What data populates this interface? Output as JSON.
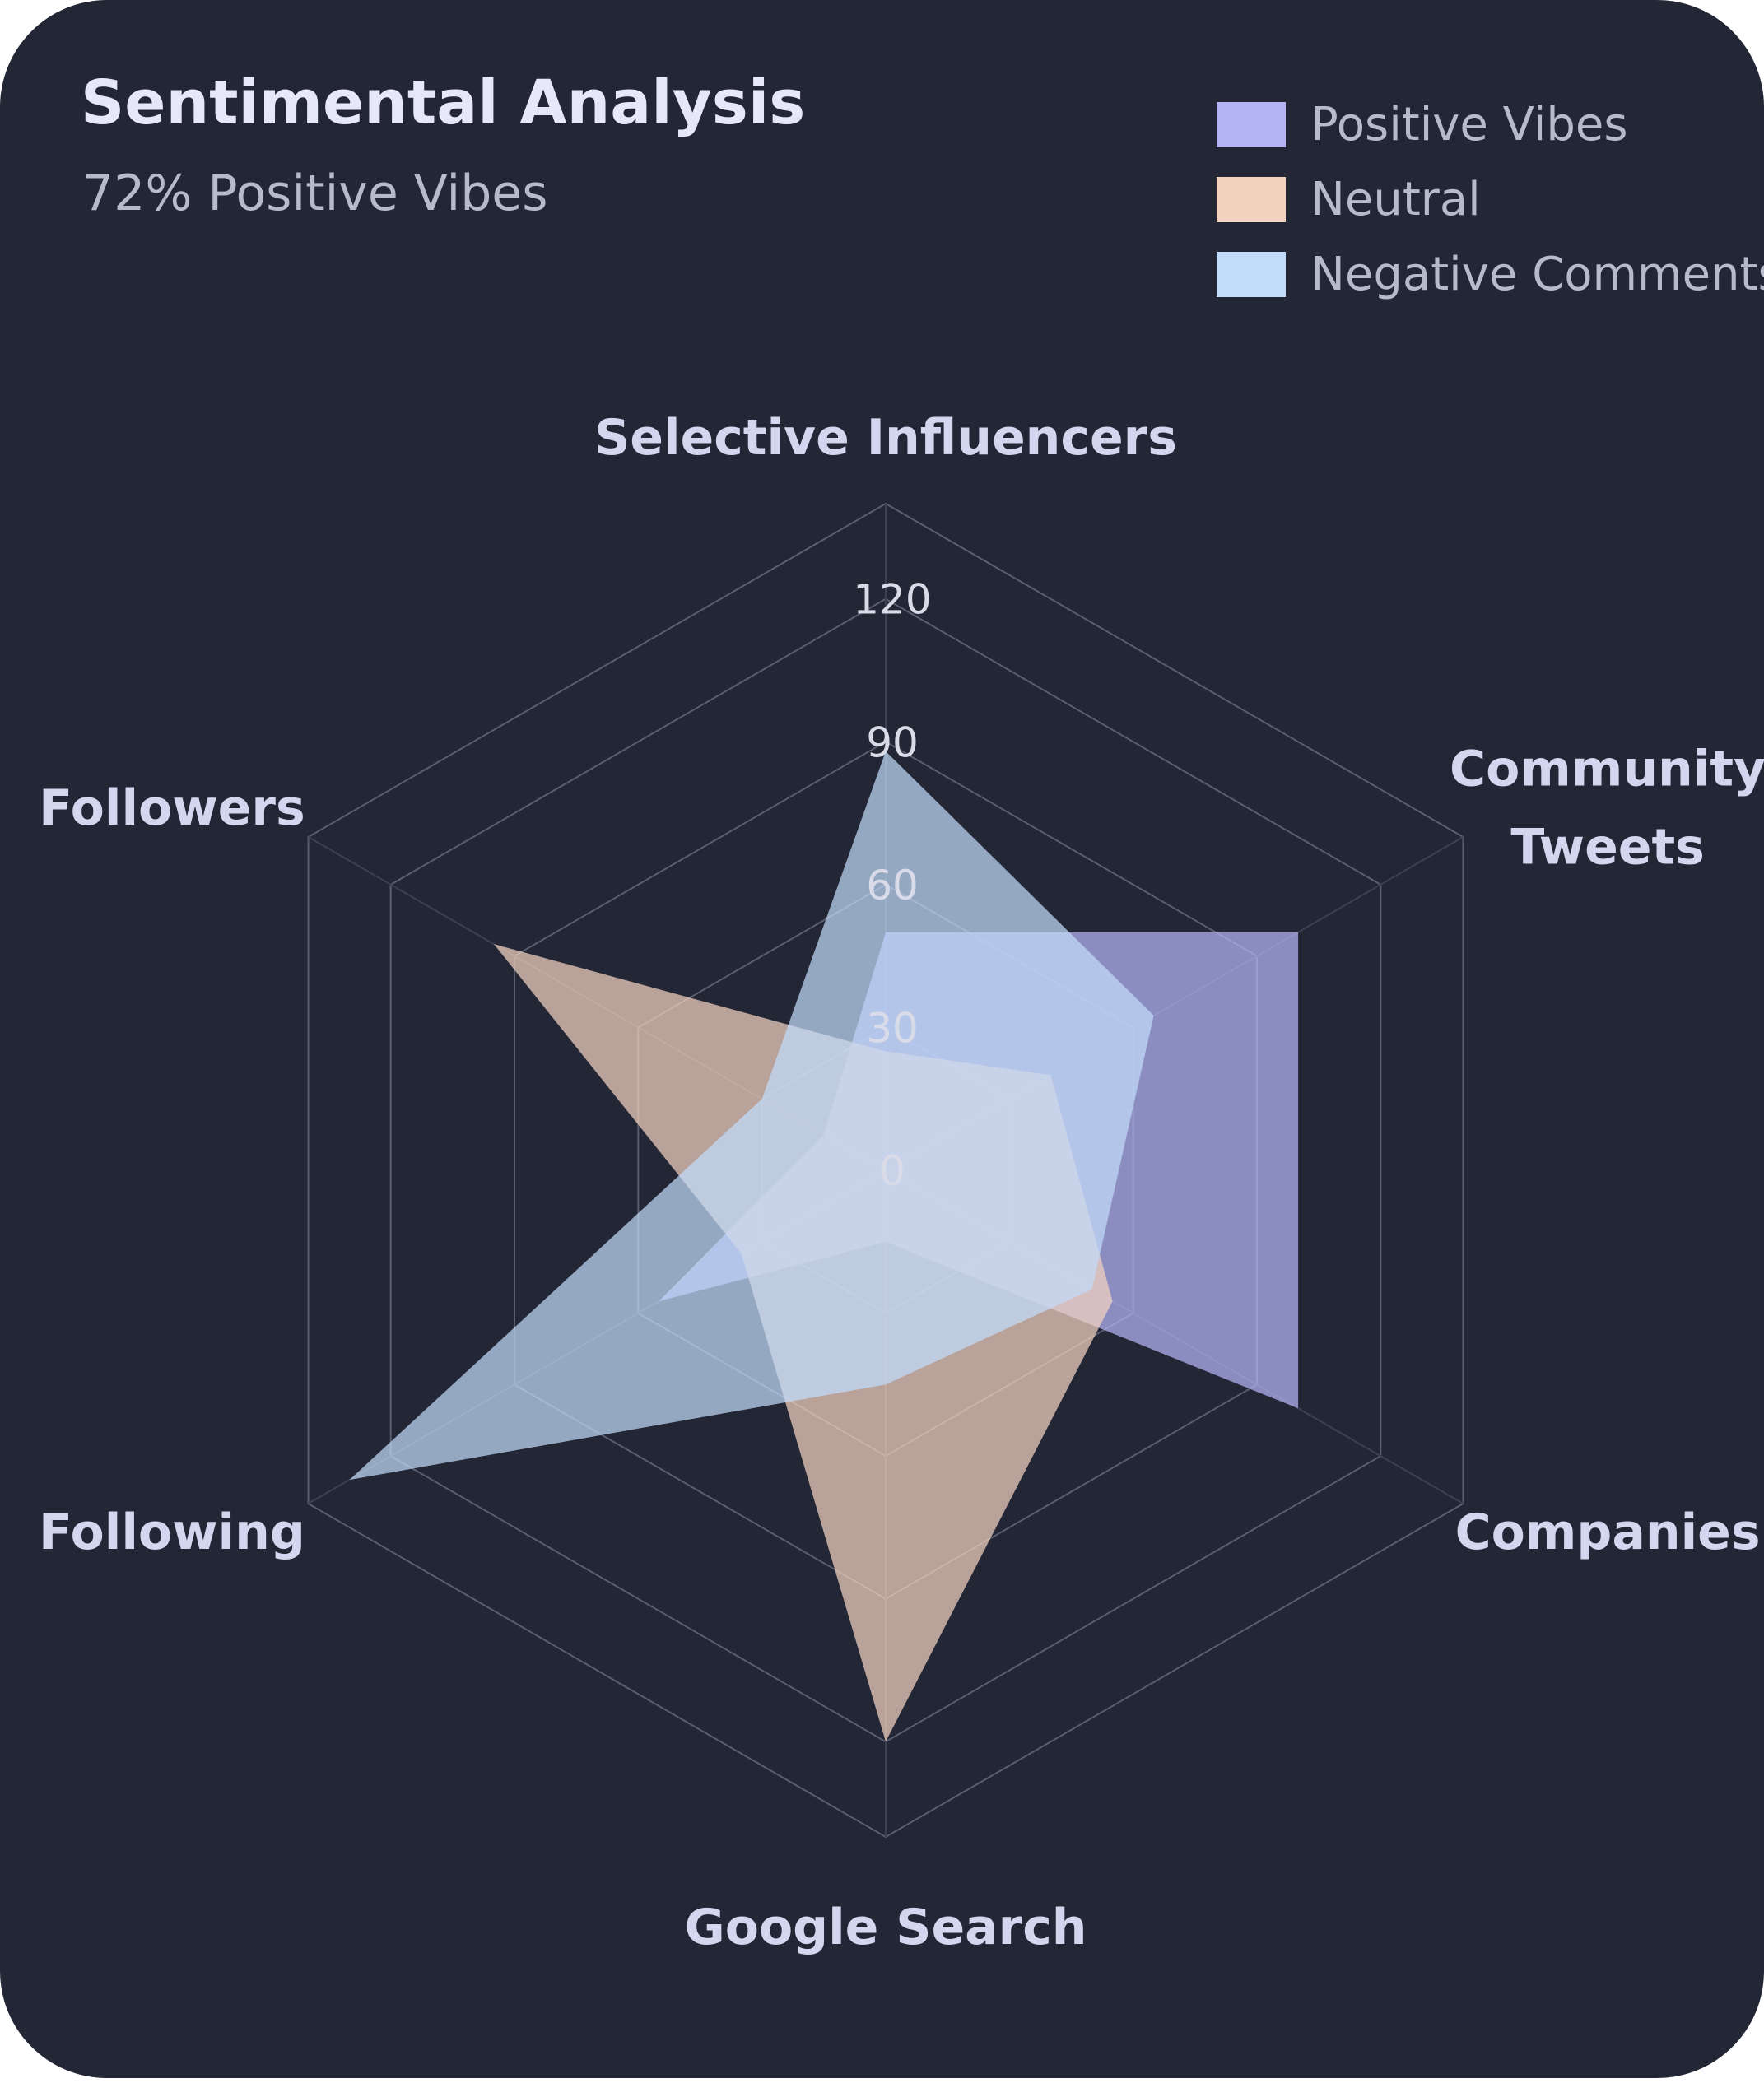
{
  "card": {
    "background": "#232635"
  },
  "chart_data": {
    "type": "radar",
    "title": "Sentimental Analysis",
    "subtitle": "72% Positive Vibes",
    "axes": [
      "Selective Influencers",
      "Community Tweets",
      "Companies",
      "Google Search",
      "Following",
      "Followers"
    ],
    "rlim": [
      0,
      140
    ],
    "ticks": [
      0,
      30,
      60,
      90,
      120
    ],
    "grid": true,
    "legend_position": "top-right",
    "series": [
      {
        "name": "Positive Vibes",
        "color": "#b4b4f5",
        "values": [
          50,
          100,
          100,
          15,
          55,
          15
        ]
      },
      {
        "name": "Neutral",
        "color": "#f2d3c0",
        "values": [
          25,
          40,
          55,
          120,
          35,
          95
        ]
      },
      {
        "name": "Negative Comments",
        "color": "#c2dbfa",
        "values": [
          88,
          65,
          50,
          45,
          130,
          30
        ]
      }
    ]
  }
}
